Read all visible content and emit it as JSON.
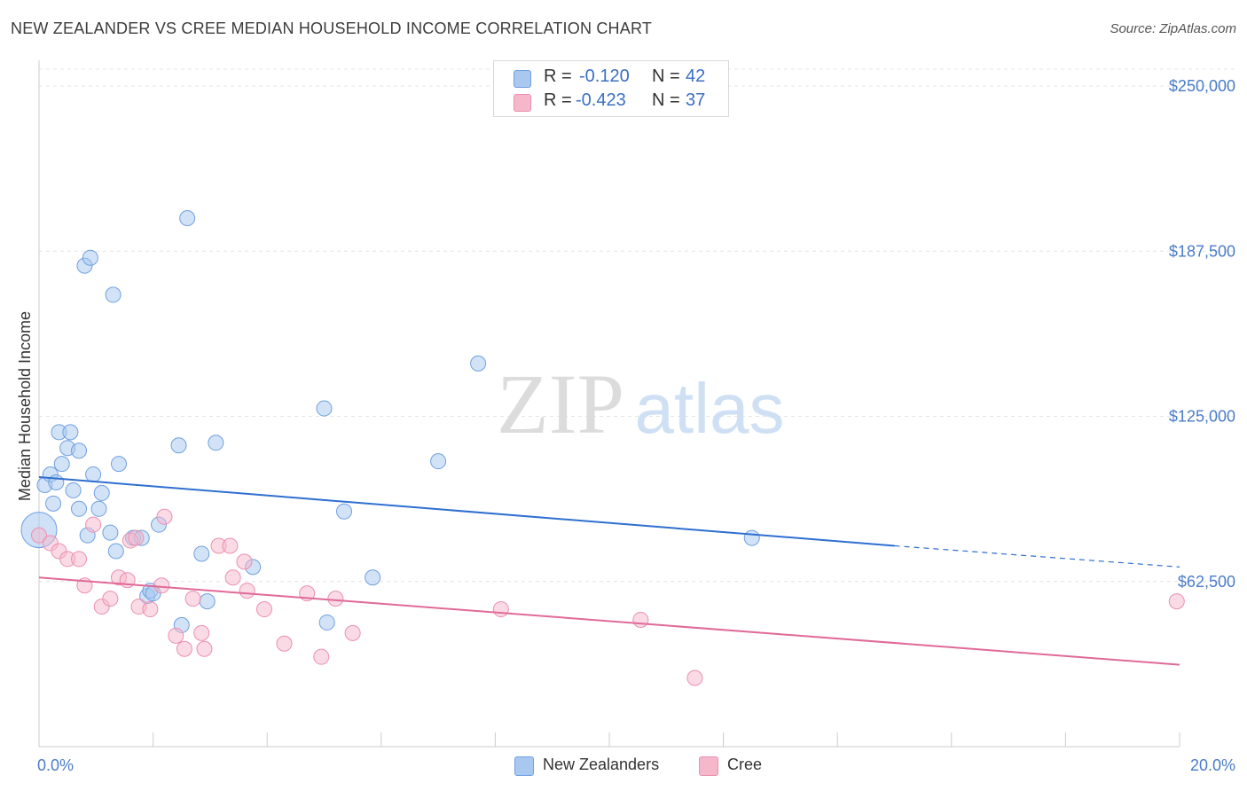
{
  "title": "NEW ZEALANDER VS CREE MEDIAN HOUSEHOLD INCOME CORRELATION CHART",
  "source": "Source: ZipAtlas.com",
  "watermark": {
    "zip": "ZIP",
    "atlas": "atlas"
  },
  "legend": {
    "rows": [
      {
        "r_label": "R =",
        "r_value": "-0.120",
        "n_label": "N =",
        "n_value": "42",
        "color": "#a8c8f0"
      },
      {
        "r_label": "R =",
        "r_value": "-0.423",
        "n_label": "N =",
        "n_value": "37",
        "color": "#f5b8cb"
      }
    ]
  },
  "bottom_legend": {
    "items": [
      {
        "label": "New Zealanders",
        "color": "#a8c8f0"
      },
      {
        "label": "Cree",
        "color": "#f5b8cb"
      }
    ]
  },
  "chart_data": {
    "type": "scatter",
    "title": "NEW ZEALANDER VS CREE MEDIAN HOUSEHOLD INCOME CORRELATION CHART",
    "xlabel": "",
    "ylabel": "Median Household Income",
    "xlim": [
      0,
      20
    ],
    "ylim": [
      0,
      250000
    ],
    "x_tick_labels": [
      "0.0%",
      "20.0%"
    ],
    "y_ticks": [
      62500,
      125000,
      187500,
      250000
    ],
    "y_tick_labels": [
      "$62,500",
      "$125,000",
      "$187,500",
      "$250,000"
    ],
    "grid": "horizontal dashed",
    "legend_position": "top-center and bottom",
    "series": [
      {
        "name": "New Zealanders",
        "color": "#6fa0e0",
        "fill": "#a8c8f0",
        "trend": {
          "x0": 0,
          "y0": 102000,
          "x1": 15,
          "y1": 76000,
          "dash_to_x": 20,
          "dash_to_y": 68000,
          "color": "#2f6fd0"
        },
        "points": [
          {
            "x": 0.0,
            "y": 82000,
            "big": true
          },
          {
            "x": 0.1,
            "y": 99000
          },
          {
            "x": 0.2,
            "y": 103000
          },
          {
            "x": 0.25,
            "y": 92000
          },
          {
            "x": 0.3,
            "y": 100000
          },
          {
            "x": 0.35,
            "y": 119000
          },
          {
            "x": 0.4,
            "y": 107000
          },
          {
            "x": 0.5,
            "y": 113000
          },
          {
            "x": 0.55,
            "y": 119000
          },
          {
            "x": 0.6,
            "y": 97000
          },
          {
            "x": 0.7,
            "y": 90000
          },
          {
            "x": 0.7,
            "y": 112000
          },
          {
            "x": 0.85,
            "y": 80000
          },
          {
            "x": 0.8,
            "y": 182000
          },
          {
            "x": 0.9,
            "y": 185000
          },
          {
            "x": 0.95,
            "y": 103000
          },
          {
            "x": 1.05,
            "y": 90000
          },
          {
            "x": 1.1,
            "y": 96000
          },
          {
            "x": 1.25,
            "y": 81000
          },
          {
            "x": 1.3,
            "y": 171000
          },
          {
            "x": 1.35,
            "y": 74000
          },
          {
            "x": 1.4,
            "y": 107000
          },
          {
            "x": 1.65,
            "y": 79000
          },
          {
            "x": 1.8,
            "y": 79000
          },
          {
            "x": 1.9,
            "y": 57000
          },
          {
            "x": 1.95,
            "y": 59000
          },
          {
            "x": 2.0,
            "y": 58000
          },
          {
            "x": 2.1,
            "y": 84000
          },
          {
            "x": 2.45,
            "y": 114000
          },
          {
            "x": 2.5,
            "y": 46000
          },
          {
            "x": 2.6,
            "y": 200000
          },
          {
            "x": 2.85,
            "y": 73000
          },
          {
            "x": 2.95,
            "y": 55000
          },
          {
            "x": 3.1,
            "y": 115000
          },
          {
            "x": 3.75,
            "y": 68000
          },
          {
            "x": 5.0,
            "y": 128000
          },
          {
            "x": 5.05,
            "y": 47000
          },
          {
            "x": 5.35,
            "y": 89000
          },
          {
            "x": 5.85,
            "y": 64000
          },
          {
            "x": 7.0,
            "y": 108000
          },
          {
            "x": 7.7,
            "y": 145000
          },
          {
            "x": 12.5,
            "y": 79000
          }
        ]
      },
      {
        "name": "Cree",
        "color": "#ec8fb0",
        "fill": "#f5b8cb",
        "trend": {
          "x0": 0,
          "y0": 64000,
          "x1": 20,
          "y1": 31000,
          "color": "#e06a97"
        },
        "points": [
          {
            "x": 0.0,
            "y": 80000
          },
          {
            "x": 0.2,
            "y": 77000
          },
          {
            "x": 0.35,
            "y": 74000
          },
          {
            "x": 0.5,
            "y": 71000
          },
          {
            "x": 0.7,
            "y": 71000
          },
          {
            "x": 0.8,
            "y": 61000
          },
          {
            "x": 0.95,
            "y": 84000
          },
          {
            "x": 1.1,
            "y": 53000
          },
          {
            "x": 1.25,
            "y": 56000
          },
          {
            "x": 1.4,
            "y": 64000
          },
          {
            "x": 1.55,
            "y": 63000
          },
          {
            "x": 1.6,
            "y": 78000
          },
          {
            "x": 1.7,
            "y": 79000
          },
          {
            "x": 1.75,
            "y": 53000
          },
          {
            "x": 1.95,
            "y": 52000
          },
          {
            "x": 2.15,
            "y": 61000
          },
          {
            "x": 2.2,
            "y": 87000
          },
          {
            "x": 2.4,
            "y": 42000
          },
          {
            "x": 2.55,
            "y": 37000
          },
          {
            "x": 2.7,
            "y": 56000
          },
          {
            "x": 2.85,
            "y": 43000
          },
          {
            "x": 2.9,
            "y": 37000
          },
          {
            "x": 3.15,
            "y": 76000
          },
          {
            "x": 3.35,
            "y": 76000
          },
          {
            "x": 3.4,
            "y": 64000
          },
          {
            "x": 3.6,
            "y": 70000
          },
          {
            "x": 3.65,
            "y": 59000
          },
          {
            "x": 3.95,
            "y": 52000
          },
          {
            "x": 4.3,
            "y": 39000
          },
          {
            "x": 4.7,
            "y": 58000
          },
          {
            "x": 4.95,
            "y": 34000
          },
          {
            "x": 5.2,
            "y": 56000
          },
          {
            "x": 5.5,
            "y": 43000
          },
          {
            "x": 8.1,
            "y": 52000
          },
          {
            "x": 10.55,
            "y": 48000
          },
          {
            "x": 11.5,
            "y": 26000
          },
          {
            "x": 19.95,
            "y": 55000
          }
        ]
      }
    ]
  }
}
